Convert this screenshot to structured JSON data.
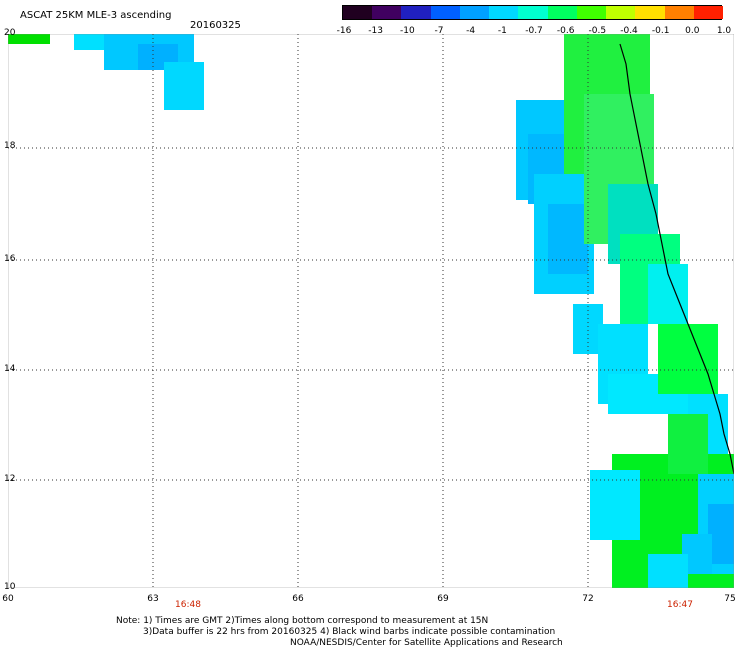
{
  "header": {
    "title": "ASCAT 25KM MLE-3 ascending",
    "date": "20160325"
  },
  "colorbar": {
    "labels": [
      "-16",
      "-13",
      "-10",
      "-7",
      "-4",
      "-1",
      "-0.7",
      "-0.6",
      "-0.5",
      "-0.4",
      "-0.1",
      "0.0",
      "1.0"
    ],
    "colors": [
      "#200020",
      "#400060",
      "#2020c0",
      "#0060ff",
      "#00a0ff",
      "#00d8ff",
      "#00ffd0",
      "#00ff60",
      "#40ff00",
      "#c0ff00",
      "#ffe000",
      "#ff8000",
      "#ff2000"
    ]
  },
  "axes": {
    "y_ticks": [
      "20",
      "18",
      "16",
      "14",
      "12",
      "10"
    ],
    "x_ticks": [
      "60",
      "63",
      "66",
      "69",
      "72",
      "75"
    ],
    "times": [
      "16:48",
      "16:47"
    ]
  },
  "notes": {
    "line1": "Note: 1) Times are GMT 2)Times along bottom correspond to measurement at 15N",
    "line2": "3)Data buffer is 22 hrs from 20160325 4) Black wind barbs indicate possible contamination",
    "line3": "NOAA/NESDIS/Center for Satellite Applications and Research"
  },
  "palette": {
    "green": "#00ff00",
    "light_green": "#20ff40",
    "cyan": "#00e0ff",
    "light_cyan": "#00f0f0",
    "sky": "#00c8ff",
    "coast": "#000000"
  }
}
